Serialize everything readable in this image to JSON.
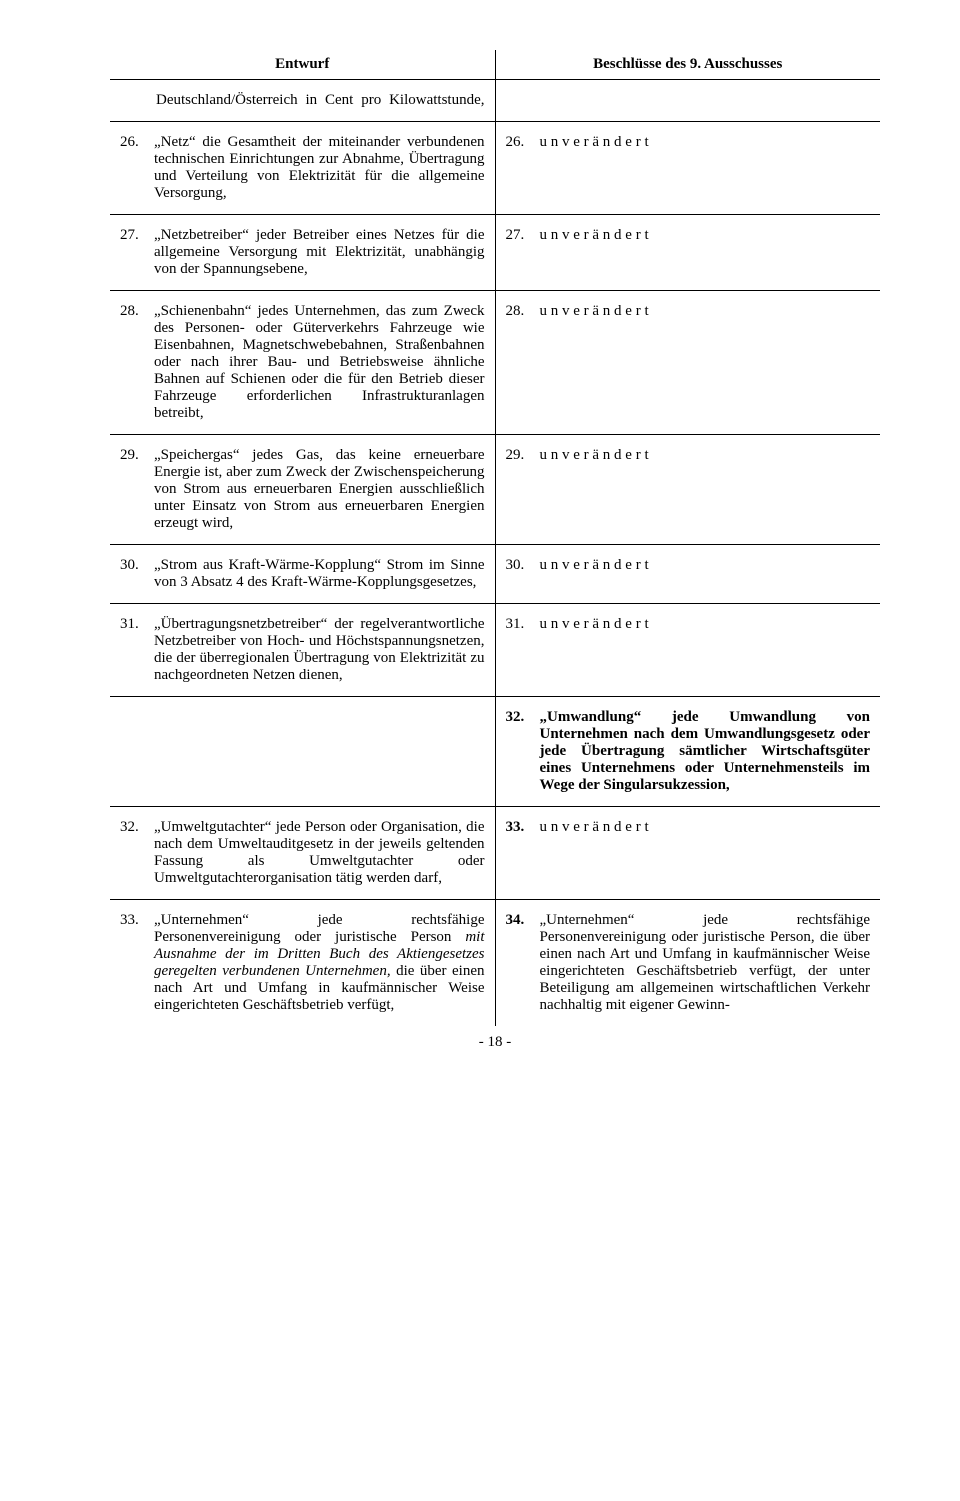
{
  "header": {
    "left": "Entwurf",
    "right": "Beschlüsse des 9. Ausschusses"
  },
  "intro": {
    "text": "Deutschland/Österreich in Cent pro Kilowattstunde,"
  },
  "rows": [
    {
      "left": {
        "num": "26.",
        "text": "„Netz“ die Gesamtheit der miteinander verbundenen technischen Einrichtungen zur Abnahme, Übertragung und Verteilung von Elektrizität für die allgemeine Versorgung,"
      },
      "right": {
        "num": "26.",
        "text": "u n v e r ä n d e r t"
      }
    },
    {
      "left": {
        "num": "27.",
        "text": "„Netzbetreiber“ jeder Betreiber eines Netzes für die allgemeine Versorgung mit Elektrizität, unabhängig von der Spannungsebene,"
      },
      "right": {
        "num": "27.",
        "text": "u n v e r ä n d e r t"
      }
    },
    {
      "left": {
        "num": "28.",
        "text": "„Schienenbahn“ jedes Unternehmen, das zum Zweck des Personen- oder Güterverkehrs Fahrzeuge wie Eisenbahnen, Magnetschwebebahnen, Straßenbahnen oder nach ihrer Bau- und Betriebsweise ähnliche Bahnen auf Schienen oder die für den Betrieb dieser Fahrzeuge erforderlichen Infrastrukturanlagen betreibt,"
      },
      "right": {
        "num": "28.",
        "text": "u n v e r ä n d e r t"
      }
    },
    {
      "left": {
        "num": "29.",
        "text": "„Speichergas“ jedes Gas, das keine erneuerbare Energie ist, aber zum Zweck der Zwischenspeicherung von Strom aus erneuerbaren Energien ausschließlich unter Einsatz von Strom aus erneuerbaren Energien erzeugt wird,"
      },
      "right": {
        "num": "29.",
        "text": "u n v e r ä n d e r t"
      }
    },
    {
      "left": {
        "num": "30.",
        "text": "„Strom aus Kraft-Wärme-Kopplung“ Strom im Sinne von 3 Absatz 4 des Kraft-Wärme-Kopplungsgesetzes,"
      },
      "right": {
        "num": "30.",
        "text": "u n v e r ä n d e r t"
      }
    },
    {
      "left": {
        "num": "31.",
        "text": "„Übertragungsnetzbetreiber“ der regelverantwortliche Netzbetreiber von Hoch- und Höchstspannungsnetzen, die der überregionalen Übertragung von Elektrizität zu nachgeordneten Netzen dienen,"
      },
      "right": {
        "num": "31.",
        "text": "u n v e r ä n d e r t"
      }
    },
    {
      "left": null,
      "right": {
        "num": "32.",
        "text": "„Umwandlung“ jede Umwandlung von Unternehmen nach dem Umwandlungsgesetz oder jede Übertragung sämtlicher Wirtschaftsgüter eines Unternehmens oder Unternehmensteils im Wege der Singularsukzession,",
        "bold": true
      }
    },
    {
      "left": {
        "num": "32.",
        "text": "„Umweltgutachter“ jede Person oder Organisation, die nach dem Umweltauditgesetz in der jeweils geltenden Fassung als Umweltgutachter oder Umweltgutachterorganisation tätig werden darf,"
      },
      "right": {
        "num": "33.",
        "text": "u n v e r ä n d e r t",
        "bold": true
      }
    },
    {
      "left": {
        "num": "33.",
        "text": "„Unternehmen“ jede rechtsfähige Personenvereinigung oder juristische Person <i>mit Ausnahme der im Dritten Buch des Aktiengesetzes geregelten verbundenen Unternehmen,</i> die über einen nach Art und Umfang in kaufmännischer Weise eingerichteten Geschäftsbetrieb verfügt,",
        "html": true
      },
      "right": {
        "num": "34.",
        "numbold": true,
        "text": "„Unternehmen“ jede rechtsfähige Personenvereinigung oder juristische Person, die über einen nach Art und Umfang in kaufmännischer Weise eingerichteten Geschäftsbetrieb verfügt, der unter Beteiligung am allgemeinen wirtschaftlichen Verkehr nachhaltig mit eigener Gewinn-"
      }
    }
  ],
  "pagenum": "- 18 -"
}
